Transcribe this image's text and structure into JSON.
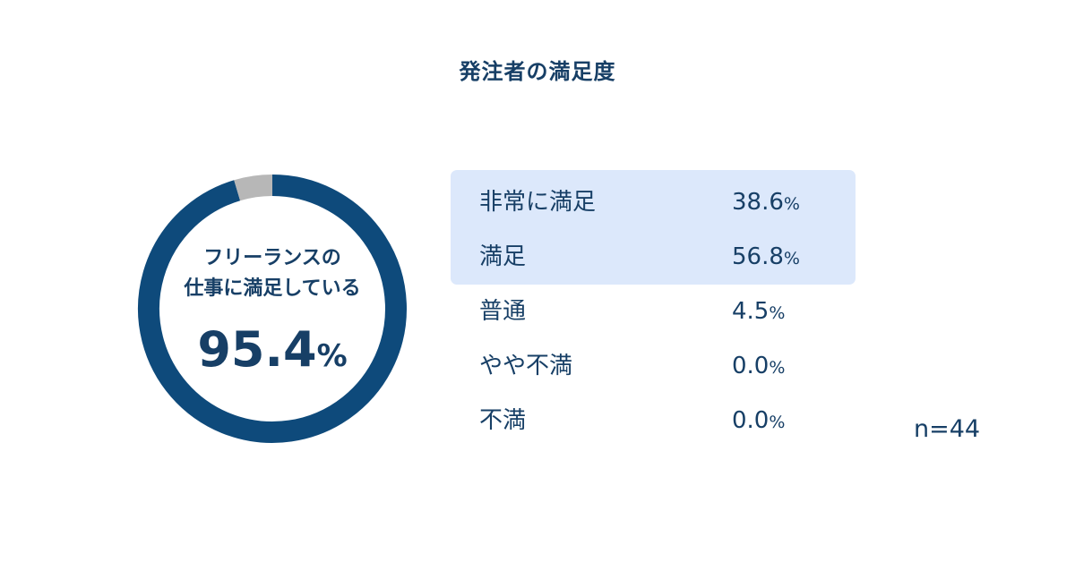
{
  "chart_data": {
    "type": "pie",
    "title": "発注者の満足度",
    "center_text": {
      "line1": "フリーランスの",
      "line2": "仕事に満足している",
      "value": "95.4",
      "unit": "%"
    },
    "donut_segments": [
      {
        "value": 95.4,
        "color": "#0e4a7b"
      },
      {
        "value": 4.6,
        "color": "#b7b7b7"
      }
    ],
    "categories": [
      "非常に満足",
      "満足",
      "普通",
      "やや不満",
      "不満"
    ],
    "values": [
      38.6,
      56.8,
      4.5,
      0.0,
      0.0
    ],
    "value_labels": [
      "38.6",
      "56.8",
      "4.5",
      "0.0",
      "0.0"
    ],
    "unit": "%",
    "highlighted_rows": [
      0,
      1
    ],
    "highlight_color": "#dce8fb",
    "sample_size": "n=44"
  }
}
